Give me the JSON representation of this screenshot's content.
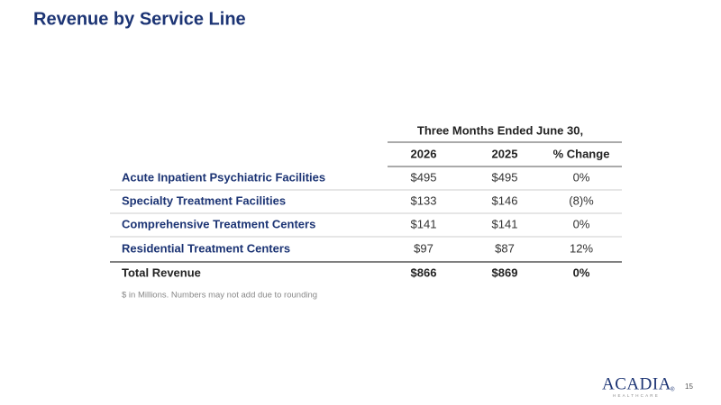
{
  "title": "Revenue by Service Line",
  "table": {
    "group_header": "Three Months Ended June 30,",
    "columns": [
      "2026",
      "2025",
      "% Change"
    ],
    "rows": [
      [
        "Acute Inpatient Psychiatric Facilities",
        "$495",
        "$495",
        "0%"
      ],
      [
        "Specialty Treatment Facilities",
        "$133",
        "$146",
        "(8)%"
      ],
      [
        "Comprehensive Treatment Centers",
        "$141",
        "$141",
        "0%"
      ],
      [
        "Residential Treatment Centers",
        "$97",
        "$87",
        "12%"
      ]
    ],
    "total": [
      "Total Revenue",
      "$866",
      "$869",
      "0%"
    ]
  },
  "footnote": "$ in Millions. Numbers may not add due to rounding",
  "logo": {
    "name": "ACADIA",
    "mark": "®",
    "tagline": "HEALTHCARE"
  },
  "page_number": "15"
}
